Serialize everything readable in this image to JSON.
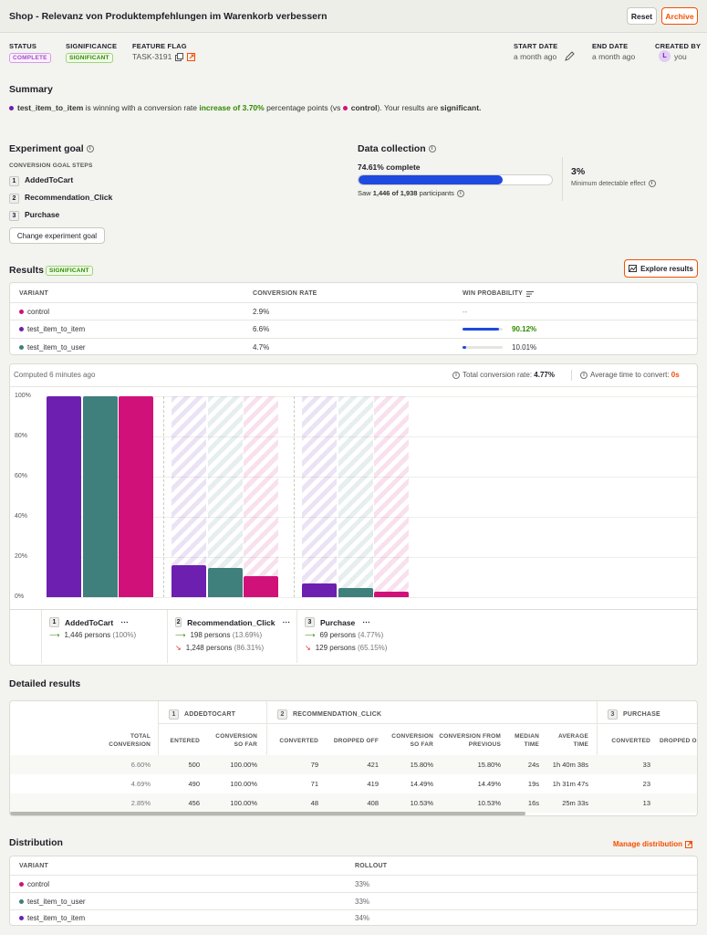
{
  "header": {
    "title": "Shop - Relevanz von Produktempfehlungen im Warenkorb verbessern",
    "reset_label": "Reset",
    "archive_label": "Archive"
  },
  "meta": {
    "status_label": "STATUS",
    "status_value": "COMPLETE",
    "significance_label": "SIGNIFICANCE",
    "significance_value": "SIGNIFICANT",
    "flag_label": "FEATURE FLAG",
    "flag_value": "TASK-3191",
    "start_label": "START DATE",
    "start_value": "a month ago",
    "end_label": "END DATE",
    "end_value": "a month ago",
    "created_label": "CREATED BY",
    "created_initial": "L",
    "created_value": "you"
  },
  "summary": {
    "heading": "Summary",
    "variant": "test_item_to_item",
    "text1": " is winning with a conversion rate ",
    "increase": "increase of 3.70%",
    "text2": " percentage points (vs ",
    "control": "control",
    "text3": "). Your results are ",
    "significant": "significant."
  },
  "goal": {
    "heading": "Experiment goal",
    "steps_label": "CONVERSION GOAL STEPS",
    "steps": [
      {
        "num": "1",
        "name": "AddedToCart"
      },
      {
        "num": "2",
        "name": "Recommendation_Click"
      },
      {
        "num": "3",
        "name": "Purchase"
      }
    ],
    "change_button": "Change experiment goal"
  },
  "collection": {
    "heading": "Data collection",
    "complete": "74.61% complete",
    "progress": 0.7461,
    "saw_prefix": "Saw ",
    "saw_count": "1,446 of 1,938",
    "saw_suffix": " participants",
    "mde_value": "3%",
    "mde_label": "Minimum detectable effect"
  },
  "results": {
    "heading": "Results",
    "badge": "SIGNIFICANT",
    "explore_button": "Explore results",
    "columns": [
      "VARIANT",
      "CONVERSION RATE",
      "WIN PROBABILITY"
    ],
    "rows": [
      {
        "name": "control",
        "color": "#d1117a",
        "rate": "2.9%",
        "win": "--",
        "winfrac": 0
      },
      {
        "name": "test_item_to_item",
        "color": "#6d1fb0",
        "rate": "6.6%",
        "win": "90.12%",
        "winfrac": 0.9012
      },
      {
        "name": "test_item_to_user",
        "color": "#3f7f7c",
        "rate": "4.7%",
        "win": "10.01%",
        "winfrac": 0.1001
      }
    ]
  },
  "chart": {
    "computed": "Computed 6 minutes ago",
    "total_label": "Total conversion rate: ",
    "total_value": "4.77%",
    "avg_label": "Average time to convert: ",
    "avg_value": "0s",
    "yticks": [
      "100%",
      "80%",
      "60%",
      "40%",
      "20%",
      "0%"
    ]
  },
  "chart_data": {
    "type": "bar",
    "categories": [
      "AddedToCart",
      "Recommendation_Click",
      "Purchase"
    ],
    "series": [
      {
        "name": "test_item_to_item",
        "color": "#6d1fb0",
        "values": [
          100,
          15.8,
          6.6
        ]
      },
      {
        "name": "test_item_to_user",
        "color": "#3f7f7c",
        "values": [
          100,
          14.49,
          4.69
        ]
      },
      {
        "name": "control",
        "color": "#d1117a",
        "values": [
          100,
          10.53,
          2.85
        ]
      }
    ],
    "ylim": [
      0,
      100
    ]
  },
  "steps_legend": [
    {
      "num": "1",
      "name": "AddedToCart",
      "converted": "1,446 persons",
      "converted_pct": "(100%)",
      "dropped": "",
      "dropped_pct": ""
    },
    {
      "num": "2",
      "name": "Recommendation_Click",
      "converted": "198 persons",
      "converted_pct": "(13.69%)",
      "dropped": "1,248 persons",
      "dropped_pct": "(86.31%)"
    },
    {
      "num": "3",
      "name": "Purchase",
      "converted": "69 persons",
      "converted_pct": "(4.77%)",
      "dropped": "129 persons",
      "dropped_pct": "(65.15%)"
    }
  ],
  "detailed": {
    "heading": "Detailed results",
    "step1": "ADDEDTOCART",
    "step2": "RECOMMENDATION_CLICK",
    "step3": "PURCHASE",
    "h_total": "TOTAL CONVERSION",
    "h_entered": "ENTERED",
    "h_conv_so_far": "CONVERSION SO FAR",
    "h_converted": "CONVERTED",
    "h_dropped": "DROPPED OFF",
    "h_conv_so_far2": "CONVERSION SO FAR",
    "h_from_prev": "CONVERSION FROM PREVIOUS",
    "h_median": "MEDIAN TIME",
    "h_avg": "AVERAGE TIME",
    "h_converted3": "CONVERTED",
    "h_dropped3": "DROPPED O",
    "rows": [
      {
        "total": "6.60%",
        "entered": "500",
        "csf": "100.00%",
        "conv": "79",
        "drop": "421",
        "csf2": "15.80%",
        "prev": "15.80%",
        "median": "24s",
        "avg": "1h 40m 38s",
        "conv3": "33"
      },
      {
        "total": "4.69%",
        "entered": "490",
        "csf": "100.00%",
        "conv": "71",
        "drop": "419",
        "csf2": "14.49%",
        "prev": "14.49%",
        "median": "19s",
        "avg": "1h 31m 47s",
        "conv3": "23"
      },
      {
        "total": "2.85%",
        "entered": "456",
        "csf": "100.00%",
        "conv": "48",
        "drop": "408",
        "csf2": "10.53%",
        "prev": "10.53%",
        "median": "16s",
        "avg": "25m 33s",
        "conv3": "13"
      }
    ]
  },
  "distribution": {
    "heading": "Distribution",
    "manage": "Manage distribution",
    "columns": [
      "VARIANT",
      "ROLLOUT"
    ],
    "rows": [
      {
        "name": "control",
        "color": "#d1117a",
        "rollout": "33%"
      },
      {
        "name": "test_item_to_user",
        "color": "#3f7f7c",
        "rollout": "33%"
      },
      {
        "name": "test_item_to_item",
        "color": "#6d1fb0",
        "rollout": "34%"
      }
    ]
  }
}
